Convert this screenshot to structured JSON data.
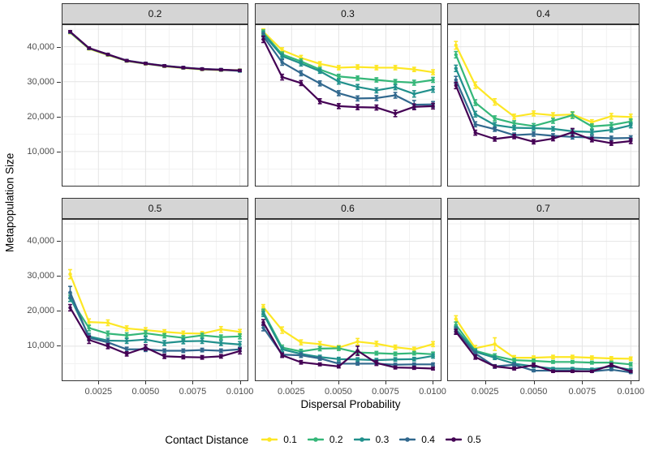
{
  "figure": {
    "y_axis_title": "Metapopulation Size",
    "x_axis_title": "Dispersal Probability"
  },
  "axes": {
    "x_tick_labels": [
      "0.0025",
      "0.0050",
      "0.0075",
      "0.0100"
    ],
    "x_tick_values": [
      0.0025,
      0.005,
      0.0075,
      0.01
    ],
    "x_minor_values": [
      0.00125,
      0.00375,
      0.00625,
      0.00875
    ],
    "y_tick_labels": [
      "10,000",
      "20,000",
      "30,000",
      "40,000"
    ],
    "y_tick_values": [
      10000,
      20000,
      30000,
      40000
    ],
    "y_minor_values": [
      5000,
      15000,
      25000,
      35000,
      45000
    ],
    "xlim": [
      0.00055,
      0.01045
    ],
    "ylim": [
      0,
      46400
    ],
    "grid": "major+minor"
  },
  "legend": {
    "title": "Contact Distance",
    "position": "bottom",
    "entries": [
      {
        "label": "0.1",
        "color": "#FDE725"
      },
      {
        "label": "0.2",
        "color": "#35B779"
      },
      {
        "label": "0.3",
        "color": "#21908C"
      },
      {
        "label": "0.4",
        "color": "#31688E"
      },
      {
        "label": "0.5",
        "color": "#440154"
      }
    ]
  },
  "chart_data": {
    "type": "line",
    "x_label": "Dispersal Probability",
    "y_label": "Metapopulation Size",
    "legend_title": "Contact Distance",
    "facet_labels": [
      "0.2",
      "0.3",
      "0.4",
      "0.5",
      "0.6",
      "0.7"
    ],
    "x": [
      0.001,
      0.002,
      0.003,
      0.004,
      0.005,
      0.006,
      0.007,
      0.008,
      0.009,
      0.01
    ],
    "facets": [
      {
        "label": "0.2",
        "series": [
          {
            "name": "0.1",
            "values": [
              44000,
              39400,
              37600,
              35900,
              35100,
              34400,
              33900,
              33500,
              33300,
              33300
            ],
            "err": [
              300,
              300,
              300,
              300,
              300,
              300,
              300,
              300,
              300,
              300
            ]
          },
          {
            "name": "0.2",
            "values": [
              44100,
              39500,
              37700,
              35950,
              35150,
              34450,
              33950,
              33550,
              33350,
              33250
            ],
            "err": [
              300,
              300,
              300,
              300,
              300,
              300,
              300,
              300,
              300,
              300
            ]
          },
          {
            "name": "0.3",
            "values": [
              44200,
              39550,
              37750,
              36000,
              35200,
              34500,
              34000,
              33600,
              33400,
              33050
            ],
            "err": [
              300,
              300,
              300,
              300,
              300,
              300,
              300,
              300,
              300,
              300
            ]
          },
          {
            "name": "0.4",
            "values": [
              44250,
              39600,
              37800,
              36050,
              35250,
              34550,
              34050,
              33650,
              33450,
              33150
            ],
            "err": [
              300,
              300,
              300,
              300,
              300,
              300,
              300,
              300,
              300,
              300
            ]
          },
          {
            "name": "0.5",
            "values": [
              44300,
              39600,
              37800,
              36000,
              35200,
              34500,
              34000,
              33600,
              33400,
              33200
            ],
            "err": [
              300,
              300,
              300,
              300,
              300,
              300,
              300,
              300,
              300,
              300
            ]
          }
        ]
      },
      {
        "label": "0.3",
        "series": [
          {
            "name": "0.1",
            "values": [
              44300,
              39000,
              36800,
              35100,
              34000,
              34200,
              34000,
              34000,
              33500,
              32700
            ],
            "err": [
              800,
              700,
              700,
              600,
              600,
              600,
              600,
              600,
              600,
              700
            ]
          },
          {
            "name": "0.2",
            "values": [
              44000,
              37800,
              35800,
              33500,
              31500,
              31000,
              30500,
              30000,
              29700,
              30500
            ],
            "err": [
              800,
              700,
              700,
              600,
              600,
              600,
              600,
              600,
              700,
              700
            ]
          },
          {
            "name": "0.3",
            "values": [
              43600,
              37300,
              35200,
              33000,
              30000,
              28500,
              27500,
              28400,
              26500,
              27800
            ],
            "err": [
              800,
              700,
              700,
              600,
              700,
              700,
              700,
              700,
              900,
              800
            ]
          },
          {
            "name": "0.4",
            "values": [
              43000,
              35500,
              32400,
              29500,
              26700,
              25200,
              25300,
              26100,
              23400,
              23500
            ],
            "err": [
              900,
              800,
              700,
              700,
              700,
              700,
              700,
              800,
              1200,
              800
            ]
          },
          {
            "name": "0.5",
            "values": [
              42100,
              31300,
              29600,
              24400,
              23000,
              22700,
              22600,
              20900,
              22800,
              23000
            ],
            "err": [
              900,
              800,
              700,
              700,
              700,
              700,
              700,
              900,
              800,
              800
            ]
          }
        ]
      },
      {
        "label": "0.4",
        "series": [
          {
            "name": "0.1",
            "values": [
              40400,
              29000,
              24200,
              20000,
              20900,
              20400,
              20600,
              18400,
              20100,
              19900
            ],
            "err": [
              1100,
              900,
              900,
              700,
              700,
              700,
              800,
              700,
              800,
              800
            ]
          },
          {
            "name": "0.2",
            "values": [
              37700,
              24000,
              19500,
              18100,
              17300,
              18800,
              20400,
              17200,
              17600,
              18600
            ],
            "err": [
              900,
              800,
              700,
              700,
              700,
              700,
              900,
              700,
              700,
              700
            ]
          },
          {
            "name": "0.3",
            "values": [
              33800,
              20700,
              17600,
              16800,
              16700,
              16500,
              15800,
              15600,
              16200,
              17500
            ],
            "err": [
              900,
              800,
              700,
              600,
              600,
              600,
              600,
              600,
              600,
              700
            ]
          },
          {
            "name": "0.4",
            "values": [
              30500,
              17800,
              16400,
              14700,
              15000,
              14500,
              14200,
              14000,
              13800,
              13900
            ],
            "err": [
              1000,
              700,
              600,
              600,
              600,
              600,
              600,
              600,
              600,
              600
            ]
          },
          {
            "name": "0.5",
            "values": [
              28900,
              15400,
              13600,
              14300,
              12800,
              13700,
              15500,
              13400,
              12400,
              13000
            ],
            "err": [
              900,
              700,
              600,
              600,
              600,
              600,
              1100,
              600,
              600,
              700
            ]
          }
        ]
      },
      {
        "label": "0.5",
        "series": [
          {
            "name": "0.1",
            "values": [
              30600,
              16900,
              16700,
              15100,
              14600,
              14100,
              13700,
              13600,
              14800,
              14100
            ],
            "err": [
              1300,
              900,
              800,
              700,
              700,
              600,
              600,
              600,
              800,
              700
            ]
          },
          {
            "name": "0.2",
            "values": [
              23700,
              15200,
              13600,
              13100,
              13700,
              13000,
              12400,
              13100,
              12600,
              12800
            ],
            "err": [
              900,
              800,
              700,
              700,
              700,
              600,
              600,
              600,
              600,
              700
            ]
          },
          {
            "name": "0.3",
            "values": [
              24000,
              12800,
              11600,
              11500,
              11900,
              10900,
              11400,
              11500,
              10900,
              10500
            ],
            "err": [
              1200,
              900,
              700,
              700,
              800,
              700,
              700,
              700,
              700,
              800
            ]
          },
          {
            "name": "0.4",
            "values": [
              25400,
              12400,
              11100,
              9100,
              9100,
              8700,
              8700,
              8900,
              8700,
              9100
            ],
            "err": [
              1700,
              800,
              700,
              600,
              600,
              500,
              500,
              500,
              500,
              600
            ]
          },
          {
            "name": "0.5",
            "values": [
              21000,
              11800,
              10000,
              7800,
              9600,
              7100,
              6900,
              6800,
              7100,
              8600
            ],
            "err": [
              900,
              1000,
              700,
              600,
              800,
              600,
              500,
              500,
              500,
              800
            ]
          }
        ]
      },
      {
        "label": "0.6",
        "series": [
          {
            "name": "0.1",
            "values": [
              21200,
              14600,
              11100,
              10600,
              9600,
              11300,
              10700,
              9700,
              9100,
              10600
            ],
            "err": [
              700,
              900,
              700,
              700,
              600,
              900,
              700,
              600,
              600,
              700
            ]
          },
          {
            "name": "0.2",
            "values": [
              19800,
              9600,
              8500,
              9300,
              9400,
              8200,
              8000,
              7800,
              8000,
              7700
            ],
            "err": [
              800,
              700,
              600,
              600,
              600,
              600,
              500,
              500,
              500,
              600
            ]
          },
          {
            "name": "0.3",
            "values": [
              19300,
              9100,
              7800,
              6900,
              6300,
              6200,
              6000,
              6200,
              6300,
              7200
            ],
            "err": [
              800,
              700,
              600,
              500,
              500,
              500,
              500,
              500,
              500,
              600
            ]
          },
          {
            "name": "0.4",
            "values": [
              15300,
              7600,
              7400,
              6500,
              5000,
              5000,
              5000,
              4700,
              4800,
              4800
            ],
            "err": [
              900,
              600,
              600,
              500,
              400,
              400,
              400,
              400,
              400,
              400
            ]
          },
          {
            "name": "0.5",
            "values": [
              16800,
              7400,
              5400,
              4800,
              4200,
              8700,
              5200,
              3900,
              3800,
              3600
            ],
            "err": [
              800,
              600,
              500,
              400,
              400,
              1300,
              700,
              400,
              400,
              400
            ]
          }
        ]
      },
      {
        "label": "0.7",
        "series": [
          {
            "name": "0.1",
            "values": [
              17800,
              9400,
              10600,
              6700,
              6700,
              6900,
              6900,
              6700,
              6500,
              6400
            ],
            "err": [
              900,
              800,
              1800,
              600,
              500,
              500,
              500,
              500,
              500,
              500
            ]
          },
          {
            "name": "0.2",
            "values": [
              16100,
              8700,
              7200,
              6000,
              5800,
              5500,
              5500,
              5300,
              5300,
              4800
            ],
            "err": [
              800,
              600,
              600,
              500,
              500,
              400,
              400,
              400,
              400,
              500
            ]
          },
          {
            "name": "0.3",
            "values": [
              14900,
              8400,
              6700,
              5000,
              4200,
              3600,
              3600,
              3400,
              4200,
              3300
            ],
            "err": [
              800,
              600,
              500,
              400,
              400,
              300,
              300,
              300,
              400,
              400
            ]
          },
          {
            "name": "0.4",
            "values": [
              14400,
              7900,
              4200,
              4700,
              3000,
              3000,
              3000,
              2800,
              3300,
              2500
            ],
            "err": [
              900,
              600,
              500,
              400,
              300,
              300,
              300,
              300,
              300,
              300
            ]
          },
          {
            "name": "0.5",
            "values": [
              14100,
              6900,
              4200,
              3600,
              4600,
              2800,
              2800,
              2800,
              4600,
              2800
            ],
            "err": [
              700,
              600,
              400,
              400,
              500,
              300,
              300,
              300,
              500,
              300
            ]
          }
        ]
      }
    ],
    "style": {
      "panel_background": "#ffffff",
      "strip_background": "#d5d5d5",
      "panel_border": "#333333",
      "grid_major": "#e4e4e4",
      "grid_minor": "#f2f2f2",
      "axis_text_color": "#4d4d4d"
    }
  }
}
